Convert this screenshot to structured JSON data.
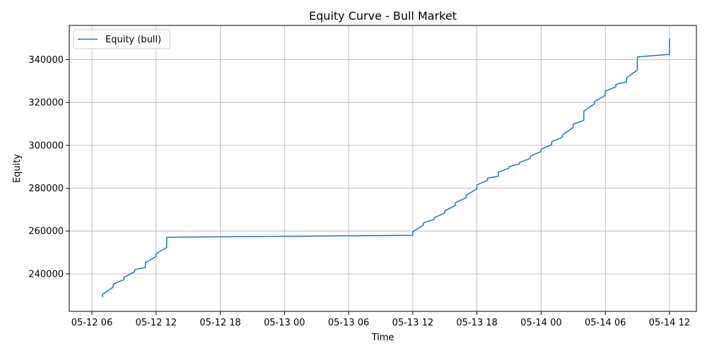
{
  "chart_data": {
    "type": "line",
    "title": "Equity Curve - Bull Market",
    "xlabel": "Time",
    "ylabel": "Equity",
    "x_ticks": [
      {
        "t": "2024-05-12T06:00",
        "label": "05-12 06"
      },
      {
        "t": "2024-05-12T12:00",
        "label": "05-12 12"
      },
      {
        "t": "2024-05-12T18:00",
        "label": "05-12 18"
      },
      {
        "t": "2024-05-13T00:00",
        "label": "05-13 00"
      },
      {
        "t": "2024-05-13T06:00",
        "label": "05-13 06"
      },
      {
        "t": "2024-05-13T12:00",
        "label": "05-13 12"
      },
      {
        "t": "2024-05-13T18:00",
        "label": "05-13 18"
      },
      {
        "t": "2024-05-14T00:00",
        "label": "05-14 00"
      },
      {
        "t": "2024-05-14T06:00",
        "label": "05-14 06"
      },
      {
        "t": "2024-05-14T12:00",
        "label": "05-14 12"
      }
    ],
    "y_ticks": [
      240000,
      260000,
      280000,
      300000,
      320000,
      340000
    ],
    "xlim": [
      "2024-05-12T03:53",
      "2024-05-14T14:31"
    ],
    "ylim": [
      222500,
      356000
    ],
    "grid": true,
    "legend_position": "upper-left",
    "series": [
      {
        "name": "Equity (bull)",
        "color": "#1f77b4",
        "points": [
          [
            "2024-05-12T07:00",
            229200
          ],
          [
            "2024-05-12T07:00",
            230500
          ],
          [
            "2024-05-12T07:59",
            233800
          ],
          [
            "2024-05-12T08:00",
            235200
          ],
          [
            "2024-05-12T08:59",
            237300
          ],
          [
            "2024-05-12T09:00",
            238400
          ],
          [
            "2024-05-12T09:59",
            241000
          ],
          [
            "2024-05-12T10:00",
            242000
          ],
          [
            "2024-05-12T10:59",
            243000
          ],
          [
            "2024-05-12T11:00",
            245300
          ],
          [
            "2024-05-12T11:59",
            248000
          ],
          [
            "2024-05-12T12:00",
            249400
          ],
          [
            "2024-05-12T12:59",
            252300
          ],
          [
            "2024-05-12T13:00",
            257100
          ],
          [
            "2024-05-13T12:00",
            258000
          ],
          [
            "2024-05-13T12:00",
            259700
          ],
          [
            "2024-05-13T12:59",
            262700
          ],
          [
            "2024-05-13T13:00",
            263800
          ],
          [
            "2024-05-13T13:59",
            265400
          ],
          [
            "2024-05-13T14:00",
            266200
          ],
          [
            "2024-05-13T14:59",
            268400
          ],
          [
            "2024-05-13T15:00",
            269400
          ],
          [
            "2024-05-13T15:59",
            272000
          ],
          [
            "2024-05-13T16:00",
            273300
          ],
          [
            "2024-05-13T16:59",
            275500
          ],
          [
            "2024-05-13T17:00",
            276700
          ],
          [
            "2024-05-13T17:59",
            279700
          ],
          [
            "2024-05-13T18:00",
            281500
          ],
          [
            "2024-05-13T18:59",
            283700
          ],
          [
            "2024-05-13T19:00",
            284700
          ],
          [
            "2024-05-13T19:59",
            285600
          ],
          [
            "2024-05-13T20:00",
            287400
          ],
          [
            "2024-05-13T20:59",
            289300
          ],
          [
            "2024-05-13T21:00",
            290000
          ],
          [
            "2024-05-13T21:59",
            291400
          ],
          [
            "2024-05-13T22:00",
            292100
          ],
          [
            "2024-05-13T22:59",
            293900
          ],
          [
            "2024-05-13T23:00",
            295000
          ],
          [
            "2024-05-13T23:59",
            297100
          ],
          [
            "2024-05-14T00:00",
            298200
          ],
          [
            "2024-05-14T00:59",
            300300
          ],
          [
            "2024-05-14T01:00",
            301700
          ],
          [
            "2024-05-14T01:59",
            303800
          ],
          [
            "2024-05-14T02:00",
            304900
          ],
          [
            "2024-05-14T02:59",
            308300
          ],
          [
            "2024-05-14T03:00",
            309900
          ],
          [
            "2024-05-14T03:59",
            311700
          ],
          [
            "2024-05-14T04:00",
            316000
          ],
          [
            "2024-05-14T04:59",
            319300
          ],
          [
            "2024-05-14T05:00",
            320400
          ],
          [
            "2024-05-14T05:59",
            323300
          ],
          [
            "2024-05-14T06:00",
            325300
          ],
          [
            "2024-05-14T06:59",
            327300
          ],
          [
            "2024-05-14T07:00",
            328500
          ],
          [
            "2024-05-14T07:59",
            329600
          ],
          [
            "2024-05-14T08:00",
            331500
          ],
          [
            "2024-05-14T08:59",
            335200
          ],
          [
            "2024-05-14T09:00",
            341300
          ],
          [
            "2024-05-14T12:00",
            342500
          ],
          [
            "2024-05-14T12:00",
            350000
          ]
        ]
      }
    ]
  }
}
